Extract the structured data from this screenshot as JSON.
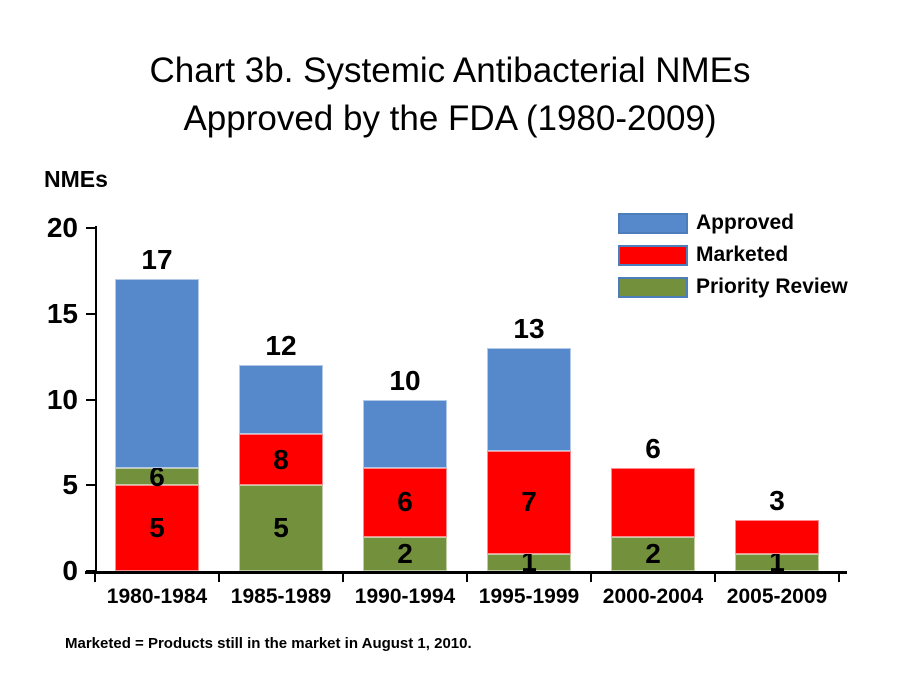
{
  "slide": {
    "title_line1": "Chart 3b. Systemic Antibacterial NMEs",
    "title_line2": "Approved by the FDA (1980-2009)",
    "y_axis_title": "NMEs",
    "footnote": "Marketed = Products still in the market in August 1, 2010."
  },
  "colors": {
    "approved": "#5589CB",
    "marketed": "#FF0000",
    "priority_review": "#73903C",
    "legend_border": "#4D7EBB",
    "axis": "#000000"
  },
  "legend": {
    "position": "top-right",
    "items": [
      {
        "label": "Approved",
        "color": "#5589CB"
      },
      {
        "label": "Marketed",
        "color": "#FF0000"
      },
      {
        "label": "Priority Review",
        "color": "#73903C"
      }
    ]
  },
  "chart_data": {
    "type": "bar",
    "subtype": "overlay-stacked-columns",
    "title": "Chart 3b. Systemic Antibacterial NMEs Approved by the FDA (1980-2009)",
    "xlabel": "",
    "ylabel": "NMEs",
    "ylim": [
      0,
      20
    ],
    "yticks": [
      0,
      5,
      10,
      15,
      20
    ],
    "grid": false,
    "legend_position": "top-right",
    "categories": [
      "1980-1984",
      "1985-1989",
      "1990-1994",
      "1995-1999",
      "2000-2004",
      "2005-2009"
    ],
    "series": [
      {
        "name": "Approved",
        "color": "#5589CB",
        "values": [
          17,
          12,
          10,
          13,
          6,
          3
        ]
      },
      {
        "name": "Marketed",
        "color": "#FF0000",
        "values": [
          5,
          8,
          6,
          7,
          6,
          3
        ]
      },
      {
        "name": "Priority Review",
        "color": "#73903C",
        "values": [
          6,
          5,
          2,
          1,
          2,
          1
        ]
      }
    ],
    "bars": [
      {
        "category": "1980-1984",
        "total": 17,
        "total_label": "17",
        "segments": [
          {
            "series": "Marketed",
            "color": "#FF0000",
            "from": 0,
            "to": 5,
            "label": "5"
          },
          {
            "series": "Priority Review",
            "color": "#73903C",
            "from": 5,
            "to": 6,
            "label": "6"
          },
          {
            "series": "Approved",
            "color": "#5589CB",
            "from": 6,
            "to": 17,
            "label": ""
          }
        ]
      },
      {
        "category": "1985-1989",
        "total": 12,
        "total_label": "12",
        "segments": [
          {
            "series": "Priority Review",
            "color": "#73903C",
            "from": 0,
            "to": 5,
            "label": "5"
          },
          {
            "series": "Marketed",
            "color": "#FF0000",
            "from": 5,
            "to": 8,
            "label": "8"
          },
          {
            "series": "Approved",
            "color": "#5589CB",
            "from": 8,
            "to": 12,
            "label": ""
          }
        ]
      },
      {
        "category": "1990-1994",
        "total": 10,
        "total_label": "10",
        "segments": [
          {
            "series": "Priority Review",
            "color": "#73903C",
            "from": 0,
            "to": 2,
            "label": "2"
          },
          {
            "series": "Marketed",
            "color": "#FF0000",
            "from": 2,
            "to": 6,
            "label": "6"
          },
          {
            "series": "Approved",
            "color": "#5589CB",
            "from": 6,
            "to": 10,
            "label": ""
          }
        ]
      },
      {
        "category": "1995-1999",
        "total": 13,
        "total_label": "13",
        "segments": [
          {
            "series": "Priority Review",
            "color": "#73903C",
            "from": 0,
            "to": 1,
            "label": "1"
          },
          {
            "series": "Marketed",
            "color": "#FF0000",
            "from": 1,
            "to": 7,
            "label": "7"
          },
          {
            "series": "Approved",
            "color": "#5589CB",
            "from": 7,
            "to": 13,
            "label": ""
          }
        ]
      },
      {
        "category": "2000-2004",
        "total": 6,
        "total_label": "6",
        "segments": [
          {
            "series": "Priority Review",
            "color": "#73903C",
            "from": 0,
            "to": 2,
            "label": "2"
          },
          {
            "series": "Marketed",
            "color": "#FF0000",
            "from": 2,
            "to": 6,
            "label": ""
          }
        ]
      },
      {
        "category": "2005-2009",
        "total": 3,
        "total_label": "3",
        "segments": [
          {
            "series": "Priority Review",
            "color": "#73903C",
            "from": 0,
            "to": 1,
            "label": "1"
          },
          {
            "series": "Marketed",
            "color": "#FF0000",
            "from": 1,
            "to": 3,
            "label": ""
          }
        ]
      }
    ]
  }
}
